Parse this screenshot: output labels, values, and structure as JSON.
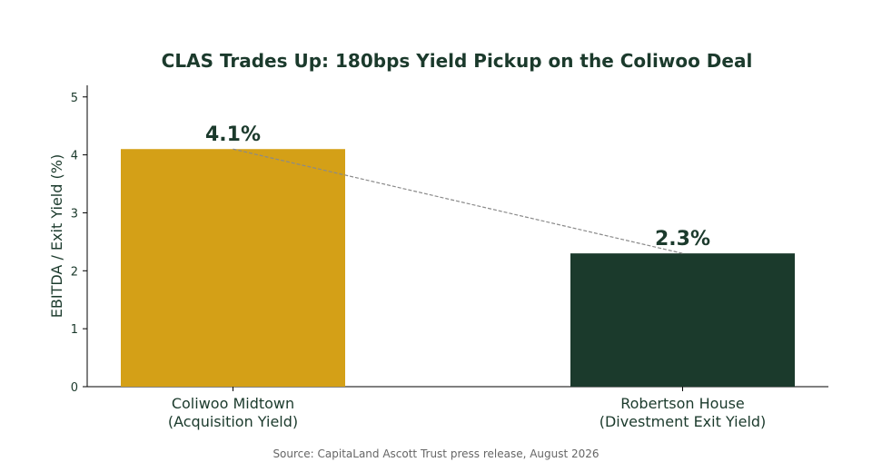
{
  "chart_data": {
    "type": "bar",
    "title": "CLAS Trades Up: 180bps Yield Pickup on the Coliwoo Deal",
    "xlabel": "",
    "ylabel": "EBITDA / Exit Yield (%)",
    "categories": [
      [
        "Coliwoo Midtown",
        "(Acquisition Yield)"
      ],
      [
        "Robertson House",
        "(Divestment Exit Yield)"
      ]
    ],
    "values": [
      4.1,
      2.3
    ],
    "value_labels": [
      "4.1%",
      "2.3%"
    ],
    "bar_colors": [
      "#D4A017",
      "#1B3A2C"
    ],
    "ylim": [
      0,
      5.2
    ],
    "yticks": [
      0,
      1,
      2,
      3,
      4,
      5
    ],
    "grid": false,
    "legend": "none",
    "connector_line": true
  },
  "colors": {
    "text": "#1B3A2C",
    "connector": "#8a8a8a",
    "source_text": "#666666"
  },
  "source": "Source: CapitaLand Ascott Trust press release, August 2026"
}
